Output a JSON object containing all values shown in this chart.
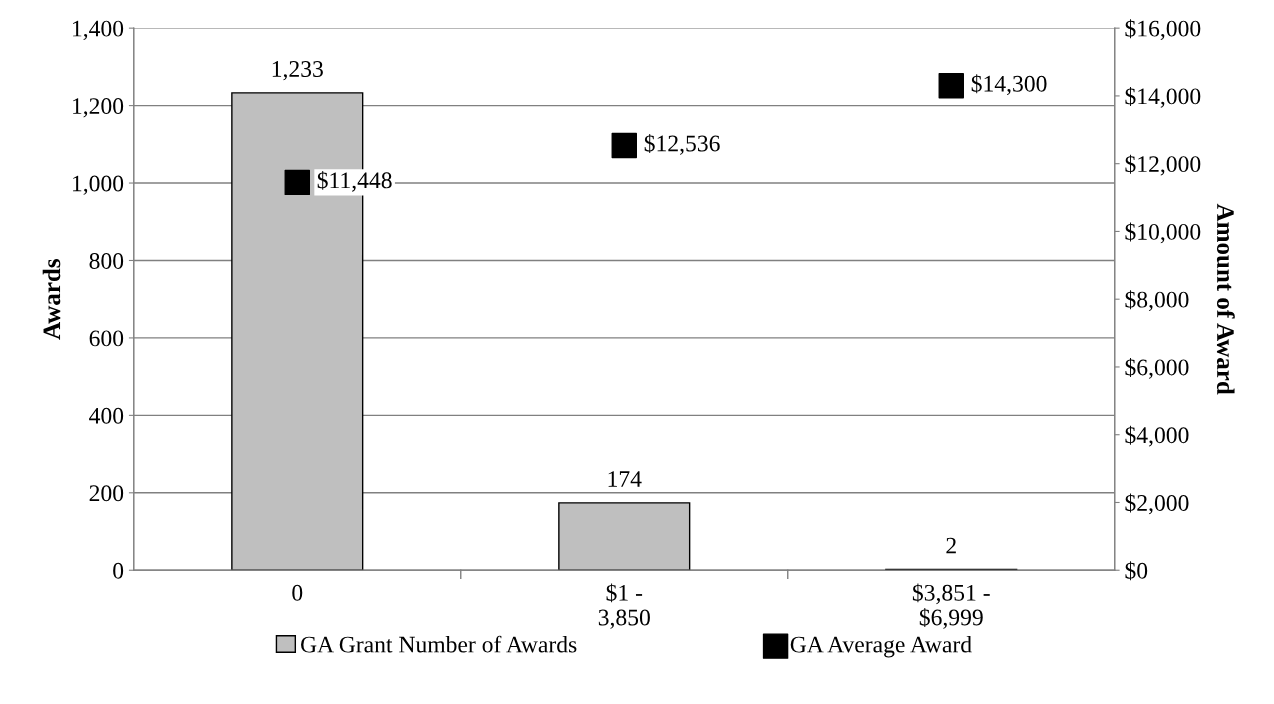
{
  "chart_data": {
    "type": "bar",
    "categories": [
      "0",
      "$1 -\n3,850",
      "$3,851 -\n$6,999"
    ],
    "series": [
      {
        "name": "GA Grant Number of Awards",
        "color": "#bfbfbf",
        "values": [
          1233,
          174,
          2
        ],
        "value_labels": [
          "1,233",
          "174",
          "2"
        ]
      },
      {
        "name": "GA Average Award",
        "type": "scatter",
        "axis": "y2",
        "color": "#000000",
        "marker": "square",
        "values": [
          11448,
          12536,
          14300
        ],
        "value_labels": [
          "$11,448",
          "$12,536",
          "$14,300"
        ]
      }
    ],
    "ylabel": "Awards",
    "y2label": "Amount of Award",
    "ylim": [
      0,
      1400
    ],
    "yticks": [
      0,
      200,
      400,
      600,
      800,
      {
        "value": 1000,
        "label": "1,000"
      },
      {
        "value": 1200,
        "label": "1,200"
      },
      {
        "value": 1400,
        "label": "1,400"
      }
    ],
    "y2lim": [
      0,
      16000
    ],
    "y2ticks": [
      {
        "value": 0,
        "label": "$0"
      },
      {
        "value": 2000,
        "label": "$2,000"
      },
      {
        "value": 4000,
        "label": "$4,000"
      },
      {
        "value": 6000,
        "label": "$6,000"
      },
      {
        "value": 8000,
        "label": "$8,000"
      },
      {
        "value": 10000,
        "label": "$10,000"
      },
      {
        "value": 12000,
        "label": "$12,000"
      },
      {
        "value": 14000,
        "label": "$14,000"
      },
      {
        "value": 16000,
        "label": "$16,000"
      }
    ],
    "grid": "y",
    "legend": "bottom"
  }
}
